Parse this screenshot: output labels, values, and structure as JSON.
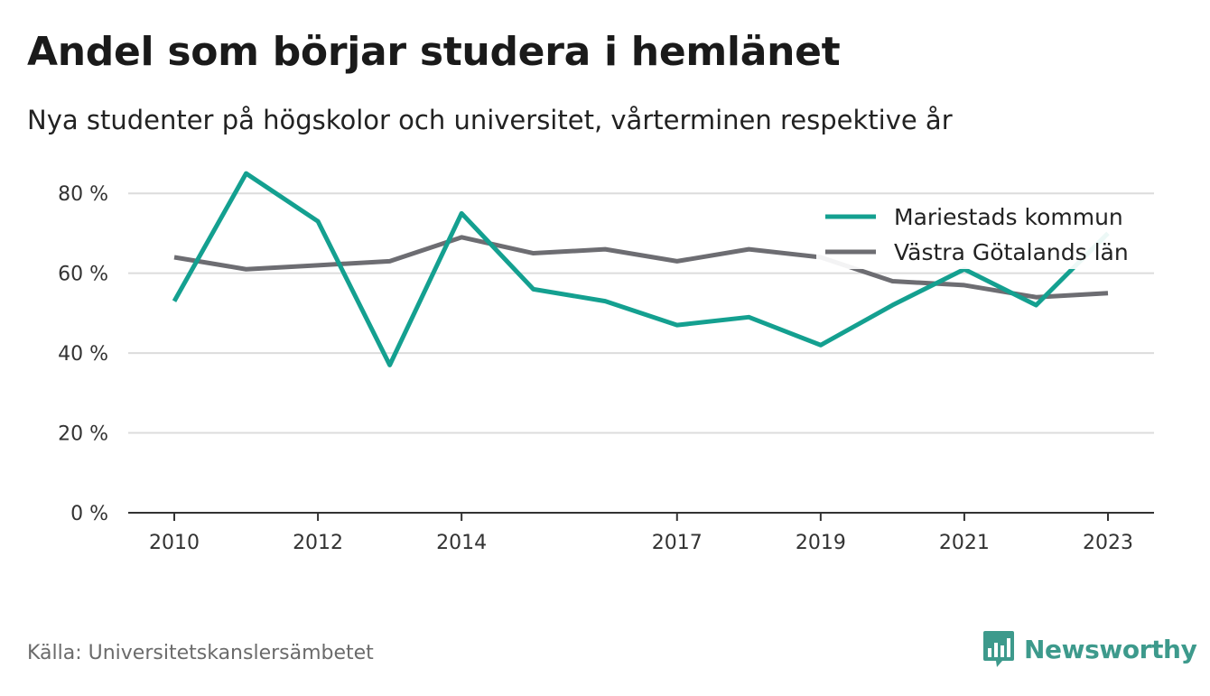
{
  "title": "Andel som börjar studera i hemlänet",
  "subtitle": "Nya studenter på högskolor och universitet, vårterminen respektive år",
  "source": "Källa: Universitetskanslersämbetet",
  "brand": {
    "name": "Newsworthy",
    "icon": "newsworthy-logo-icon",
    "color": "#3d9a8c"
  },
  "chart_data": {
    "type": "line",
    "x": [
      2010,
      2011,
      2012,
      2013,
      2014,
      2015,
      2016,
      2017,
      2018,
      2019,
      2020,
      2021,
      2022,
      2023
    ],
    "x_ticks": [
      "2010",
      "2012",
      "2014",
      "2017",
      "2019",
      "2021",
      "2023"
    ],
    "y_ticks": [
      "0 %",
      "20 %",
      "40 %",
      "60 %",
      "80 %"
    ],
    "ylim": [
      0,
      90
    ],
    "grid": true,
    "legend_position": "top-right",
    "series": [
      {
        "name": "Mariestads kommun",
        "color": "#14a090",
        "values": [
          53,
          85,
          73,
          37,
          75,
          56,
          53,
          47,
          49,
          42,
          52,
          61,
          52,
          70
        ]
      },
      {
        "name": "Västra Götalands län",
        "color": "#6d6d72",
        "values": [
          64,
          61,
          62,
          63,
          69,
          65,
          66,
          63,
          66,
          64,
          58,
          57,
          54,
          55
        ]
      }
    ]
  }
}
